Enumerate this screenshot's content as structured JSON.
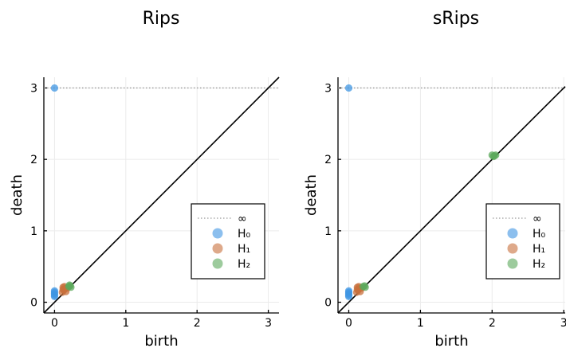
{
  "colors": {
    "H0": "#3f95e3",
    "H1": "#c8703c",
    "H2": "#5ca95c",
    "inf_line": "#999999"
  },
  "legend": {
    "labels": [
      "∞",
      "H₀",
      "H₁",
      "H₂"
    ],
    "position": "right"
  },
  "chart_data": [
    {
      "type": "scatter",
      "title": "Rips",
      "xlabel": "birth",
      "ylabel": "death",
      "xlim": [
        -0.15,
        3.15
      ],
      "ylim": [
        -0.15,
        3.15
      ],
      "xticks": [
        0,
        1,
        2,
        3
      ],
      "yticks": [
        0,
        1,
        2,
        3
      ],
      "grid": true,
      "diagonal": true,
      "infinity_level": 3,
      "series": [
        {
          "name": "H₀",
          "points": [
            [
              0,
              3
            ],
            [
              0,
              0.08
            ],
            [
              0,
              0.1
            ],
            [
              0,
              0.12
            ],
            [
              0,
              0.14
            ],
            [
              0,
              0.16
            ]
          ]
        },
        {
          "name": "H₁",
          "points": [
            [
              0.11,
              0.14
            ],
            [
              0.13,
              0.17
            ],
            [
              0.15,
              0.19
            ],
            [
              0.12,
              0.21
            ],
            [
              0.16,
              0.15
            ],
            [
              0.14,
              0.22
            ],
            [
              0.18,
              0.2
            ],
            [
              0.12,
              0.18
            ]
          ]
        },
        {
          "name": "H₂",
          "points": [
            [
              0.2,
              0.22
            ],
            [
              0.22,
              0.23
            ],
            [
              0.23,
              0.21
            ],
            [
              0.21,
              0.24
            ]
          ]
        }
      ]
    },
    {
      "type": "scatter",
      "title": "sRips",
      "xlabel": "birth",
      "ylabel": "death",
      "xlim": [
        -0.15,
        3.02
      ],
      "ylim": [
        -0.15,
        3.15
      ],
      "xticks": [
        0,
        1,
        2,
        3
      ],
      "yticks": [
        0,
        1,
        2,
        3
      ],
      "grid": true,
      "diagonal": true,
      "infinity_level": 3,
      "series": [
        {
          "name": "H₀",
          "points": [
            [
              0,
              3
            ],
            [
              0,
              0.08
            ],
            [
              0,
              0.1
            ],
            [
              0,
              0.12
            ],
            [
              0,
              0.14
            ],
            [
              0,
              0.16
            ]
          ]
        },
        {
          "name": "H₁",
          "points": [
            [
              0.11,
              0.14
            ],
            [
              0.13,
              0.17
            ],
            [
              0.15,
              0.19
            ],
            [
              0.12,
              0.21
            ],
            [
              0.16,
              0.15
            ],
            [
              0.14,
              0.22
            ],
            [
              0.18,
              0.2
            ],
            [
              0.12,
              0.18
            ]
          ]
        },
        {
          "name": "H₂",
          "points": [
            [
              0.2,
              0.22
            ],
            [
              0.22,
              0.23
            ],
            [
              0.23,
              0.21
            ],
            [
              2.0,
              2.06
            ],
            [
              2.03,
              2.05
            ],
            [
              2.05,
              2.06
            ],
            [
              2.02,
              2.04
            ]
          ]
        }
      ]
    }
  ]
}
